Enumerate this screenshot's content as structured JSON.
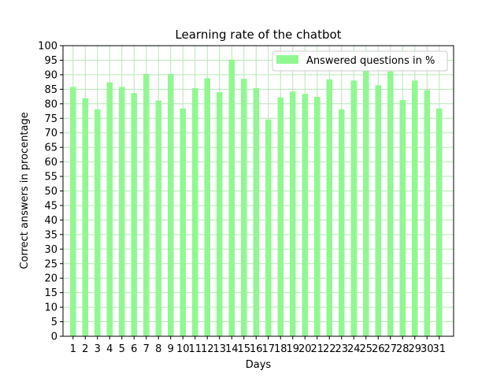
{
  "chart_data": {
    "type": "bar",
    "title": "Learning rate of the chatbot",
    "xlabel": "Days",
    "ylabel": "Correct answers in procentage",
    "categories": [
      "1",
      "2",
      "3",
      "4",
      "5",
      "6",
      "7",
      "8",
      "9",
      "10",
      "11",
      "12",
      "13",
      "14",
      "15",
      "16",
      "17",
      "18",
      "19",
      "20",
      "21",
      "22",
      "23",
      "24",
      "25",
      "26",
      "27",
      "28",
      "29",
      "30",
      "31"
    ],
    "series": [
      {
        "name": "Answered questions in %",
        "color": "#90f890",
        "values": [
          85.8,
          81.9,
          78.1,
          87.4,
          85.8,
          83.7,
          90.3,
          81.1,
          90.3,
          78.4,
          85.4,
          88.8,
          84.0,
          95.2,
          88.6,
          85.4,
          74.6,
          82.2,
          84.2,
          83.4,
          82.4,
          88.4,
          78.1,
          88.0,
          91.2,
          86.4,
          91.1,
          81.3,
          88.0,
          84.7,
          78.4
        ]
      }
    ],
    "ylim": [
      0,
      100
    ],
    "yticks": [
      0,
      5,
      10,
      15,
      20,
      25,
      30,
      35,
      40,
      45,
      50,
      55,
      60,
      65,
      70,
      75,
      80,
      85,
      90,
      95,
      100
    ],
    "grid": true,
    "grid_color": "#b9e6b9",
    "legend_position": "top-right"
  }
}
